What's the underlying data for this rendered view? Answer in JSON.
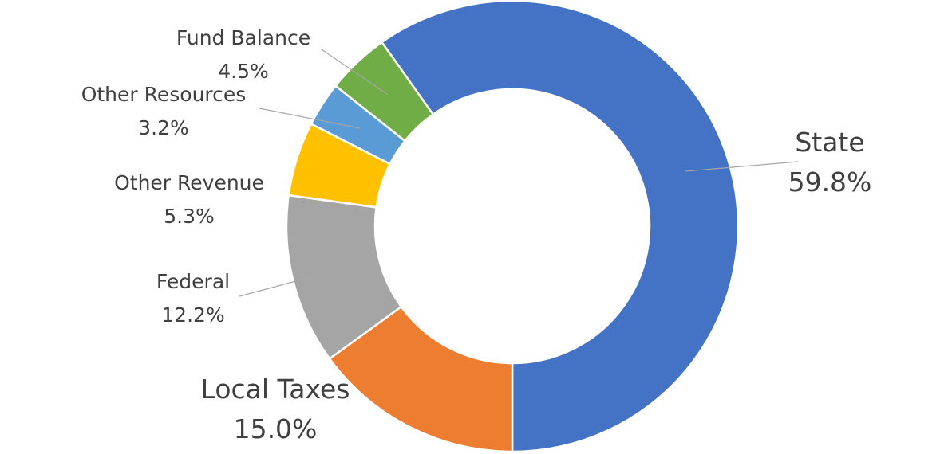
{
  "chart_data": {
    "type": "pie",
    "donut": true,
    "title": "",
    "slices": [
      {
        "label": "State",
        "value": 59.8,
        "display": "59.8%",
        "color": "#4472C4"
      },
      {
        "label": "Local Taxes",
        "value": 15.0,
        "display": "15.0%",
        "color": "#ED7D31"
      },
      {
        "label": "Federal",
        "value": 12.2,
        "display": "12.2%",
        "color": "#A5A5A5"
      },
      {
        "label": "Other Revenue",
        "value": 5.3,
        "display": "5.3%",
        "color": "#FFC000"
      },
      {
        "label": "Other Resources",
        "value": 3.2,
        "display": "3.2%",
        "color": "#5B9BD5"
      },
      {
        "label": "Fund Balance",
        "value": 4.5,
        "display": "4.5%",
        "color": "#70AD47"
      }
    ],
    "legend": "none",
    "data_labels": "category and percentage, outside with leader lines"
  }
}
